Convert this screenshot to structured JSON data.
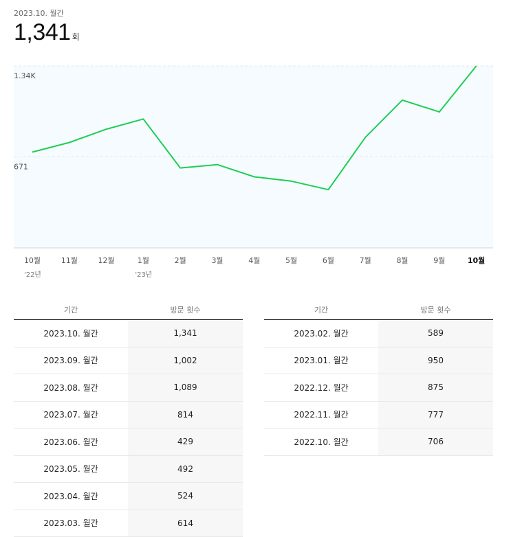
{
  "header": {
    "period_label": "2023.10. 월간",
    "total_value": "1,341",
    "total_unit": "회"
  },
  "chart_data": {
    "type": "line",
    "title": "",
    "xlabel": "",
    "ylabel": "",
    "categories": [
      "10월",
      "11월",
      "12월",
      "1월",
      "2월",
      "3월",
      "4월",
      "5월",
      "6월",
      "7월",
      "8월",
      "9월",
      "10월"
    ],
    "year_labels": [
      {
        "index": 0,
        "label": "'22년"
      },
      {
        "index": 3,
        "label": "'23년"
      }
    ],
    "highlight_index": 12,
    "y_ticks": [
      {
        "value": 1341,
        "label": "1.34K"
      },
      {
        "value": 671,
        "label": "671"
      }
    ],
    "ylim": [
      0,
      1341
    ],
    "series": [
      {
        "values": [
          706,
          777,
          875,
          950,
          589,
          614,
          524,
          492,
          429,
          814,
          1089,
          1002,
          1341
        ]
      }
    ],
    "grid": true,
    "colors": {
      "line": "#1fce52",
      "plot_bg": "#f5fbff",
      "grid": "#e4e8ec"
    }
  },
  "table": {
    "col_period": "기간",
    "col_visits": "방문 횟수",
    "left_rows": [
      {
        "period": "2023.10. 월간",
        "visits": "1,341"
      },
      {
        "period": "2023.09. 월간",
        "visits": "1,002"
      },
      {
        "period": "2023.08. 월간",
        "visits": "1,089"
      },
      {
        "period": "2023.07. 월간",
        "visits": "814"
      },
      {
        "period": "2023.06. 월간",
        "visits": "429"
      },
      {
        "period": "2023.05. 월간",
        "visits": "492"
      },
      {
        "period": "2023.04. 월간",
        "visits": "524"
      },
      {
        "period": "2023.03. 월간",
        "visits": "614"
      }
    ],
    "right_rows": [
      {
        "period": "2023.02. 월간",
        "visits": "589"
      },
      {
        "period": "2023.01. 월간",
        "visits": "950"
      },
      {
        "period": "2022.12. 월간",
        "visits": "875"
      },
      {
        "period": "2022.11. 월간",
        "visits": "777"
      },
      {
        "period": "2022.10. 월간",
        "visits": "706"
      }
    ]
  }
}
